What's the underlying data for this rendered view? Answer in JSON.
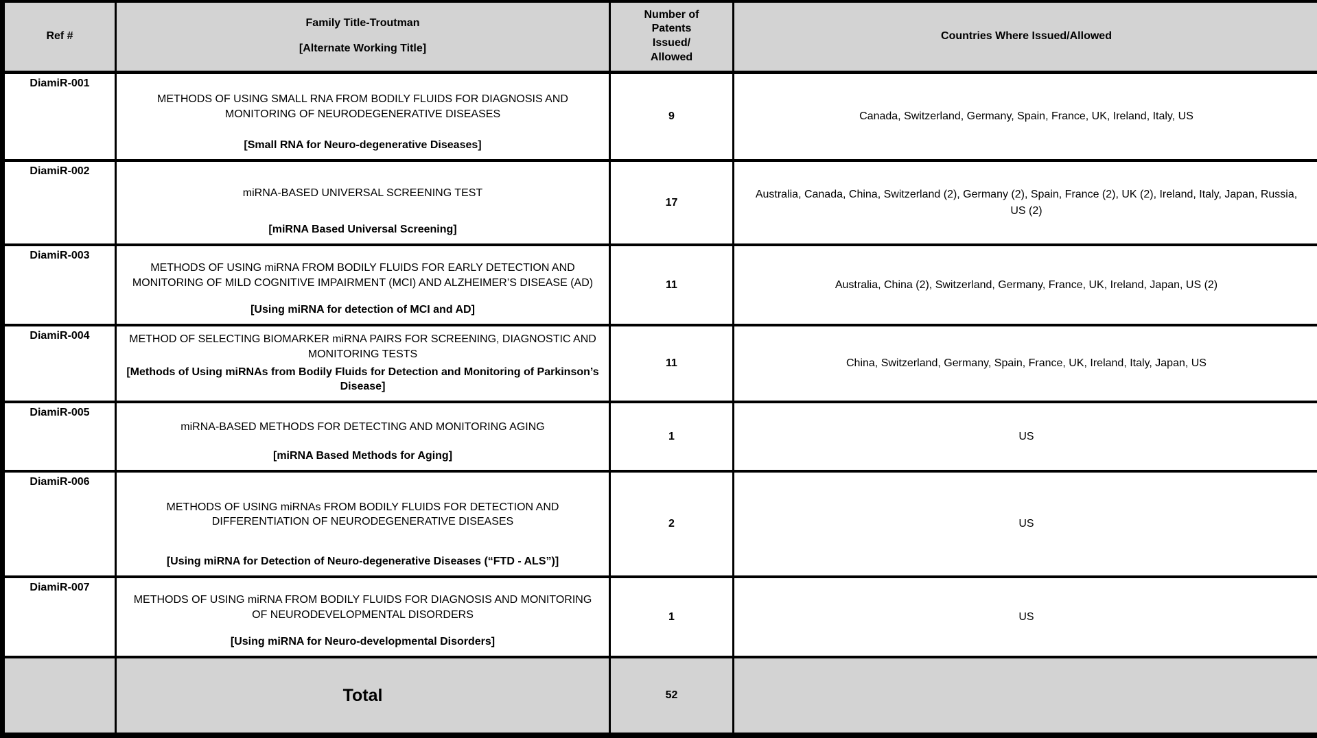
{
  "header": {
    "ref": "Ref #",
    "family_title": "Family Title-Troutman",
    "alternate_title": "[Alternate Working Title]",
    "patents": "Number of\nPatents\nIssued/\nAllowed",
    "countries": "Countries Where Issued/Allowed"
  },
  "rows": [
    {
      "ref": "DiamiR-001",
      "title": "METHODS OF USING SMALL RNA FROM BODILY FLUIDS FOR DIAGNOSIS AND MONITORING OF NEURODEGENERATIVE DISEASES",
      "alt_title": "[Small RNA for Neuro-degenerative Diseases]",
      "patents": "9",
      "countries": "Canada, Switzerland, Germany, Spain, France, UK, Ireland, Italy, US"
    },
    {
      "ref": "DiamiR-002",
      "title": "miRNA-BASED UNIVERSAL SCREENING TEST",
      "alt_title": "[miRNA Based Universal Screening]",
      "patents": "17",
      "countries": "Australia, Canada, China, Switzerland (2), Germany (2), Spain, France (2), UK (2), Ireland, Italy, Japan, Russia, US (2)"
    },
    {
      "ref": "DiamiR-003",
      "title": "METHODS OF USING miRNA FROM BODILY FLUIDS FOR EARLY DETECTION AND MONITORING OF MILD COGNITIVE IMPAIRMENT (MCI) AND ALZHEIMER’S DISEASE (AD)",
      "alt_title": "[Using miRNA for detection of MCI and AD]",
      "patents": "11",
      "countries": "Australia, China (2), Switzerland, Germany, France, UK, Ireland, Japan, US (2)"
    },
    {
      "ref": "DiamiR-004",
      "title": "METHOD OF SELECTING BIOMARKER miRNA PAIRS FOR SCREENING, DIAGNOSTIC AND MONITORING TESTS",
      "alt_title": "[Methods of Using miRNAs from Bodily Fluids for Detection and Monitoring of Parkinson’s Disease]",
      "patents": "11",
      "countries": "China, Switzerland, Germany, Spain, France, UK, Ireland, Italy, Japan, US"
    },
    {
      "ref": "DiamiR-005",
      "title": "miRNA-BASED METHODS FOR DETECTING AND MONITORING AGING",
      "alt_title": "[miRNA Based Methods for Aging]",
      "patents": "1",
      "countries": "US"
    },
    {
      "ref": "DiamiR-006",
      "title": "METHODS OF USING miRNAs FROM BODILY FLUIDS FOR DETECTION AND DIFFERENTIATION OF NEURODEGENERATIVE DISEASES",
      "alt_title": "[Using miRNA for Detection of Neuro-degenerative Diseases (“FTD - ALS”)]",
      "patents": "2",
      "countries": "US"
    },
    {
      "ref": "DiamiR-007",
      "title": "METHODS OF USING miRNA FROM BODILY FLUIDS FOR DIAGNOSIS AND MONITORING OF NEURODEVELOPMENTAL DISORDERS",
      "alt_title": "[Using miRNA for Neuro-developmental Disorders]",
      "patents": "1",
      "countries": "US"
    }
  ],
  "total": {
    "label": "Total",
    "patents": "52"
  },
  "colors": {
    "header_bg": "#d3d3d3",
    "border": "#000000",
    "row_bg": "#ffffff"
  }
}
